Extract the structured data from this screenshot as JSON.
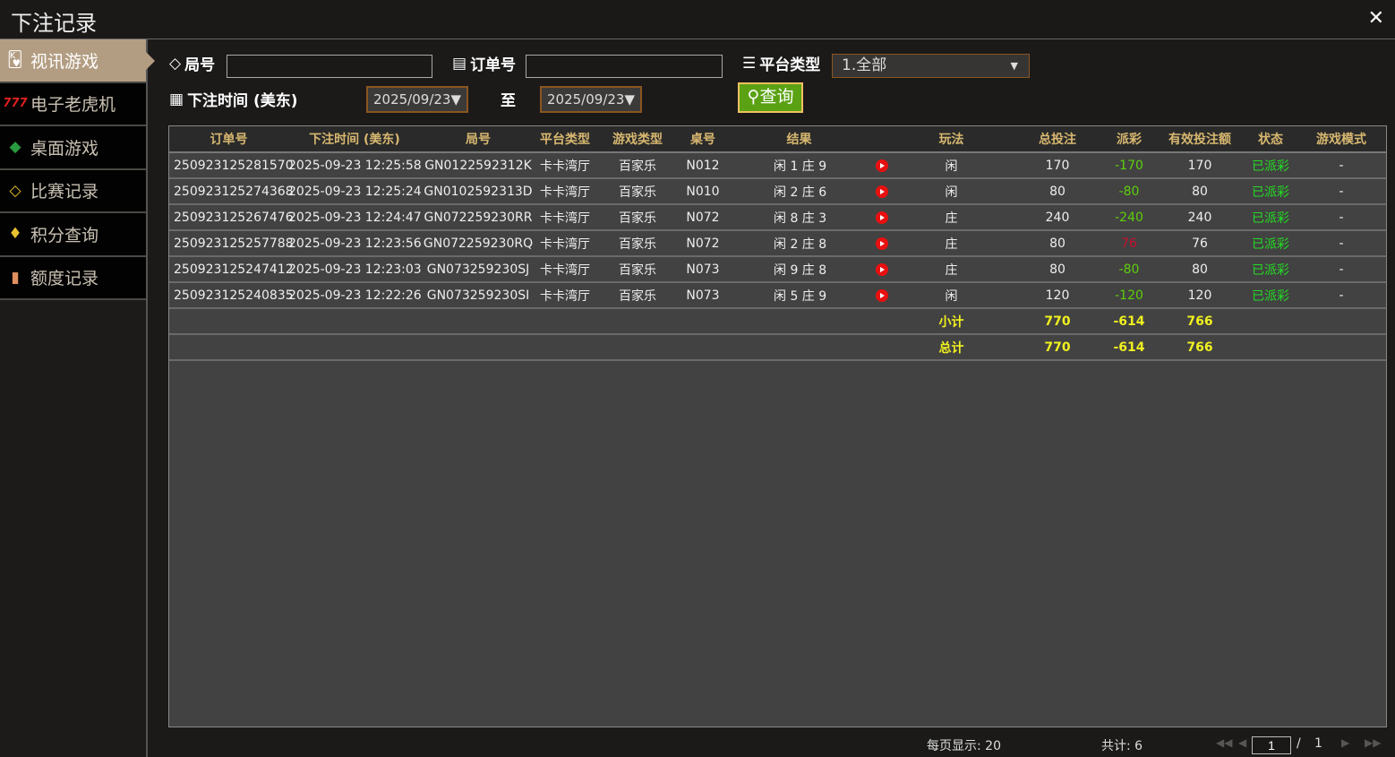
{
  "window": {
    "title": "下注记录",
    "close_icon": "close-icon"
  },
  "sidebar": {
    "items": [
      {
        "label": "视讯游戏",
        "icon": "playing-cards-icon",
        "active": true
      },
      {
        "label": "电子老虎机",
        "icon": "slot-777-icon"
      },
      {
        "label": "桌面游戏",
        "icon": "chips-icon"
      },
      {
        "label": "比赛记录",
        "icon": "ticket-icon"
      },
      {
        "label": "积分查询",
        "icon": "diamond-icon"
      },
      {
        "label": "额度记录",
        "icon": "document-icon"
      }
    ]
  },
  "filters": {
    "round_label": "局号",
    "round_value": "",
    "order_label": "订单号",
    "order_value": "",
    "platform_label": "平台类型",
    "platform_value": "1.全部",
    "time_label": "下注时间 (美东)",
    "date_from": "2025/09/23▼",
    "to_label": "至",
    "date_to": "2025/09/23▼",
    "query_label": "查询"
  },
  "table": {
    "headers": [
      "订单号",
      "下注时间 (美东)",
      "局号",
      "平台类型",
      "游戏类型",
      "桌号",
      "结果",
      "",
      "玩法",
      "总投注",
      "派彩",
      "有效投注额",
      "状态",
      "游戏模式"
    ],
    "rows": [
      [
        "250923125281570",
        "2025-09-23 12:25:58",
        "GN0122592312K",
        "卡卡湾厅",
        "百家乐",
        "N012",
        "闲 1 庄 9",
        "",
        "闲",
        "170",
        "-170",
        "170",
        "已派彩",
        "-"
      ],
      [
        "250923125274368",
        "2025-09-23 12:25:24",
        "GN0102592313D",
        "卡卡湾厅",
        "百家乐",
        "N010",
        "闲 2 庄 6",
        "",
        "闲",
        "80",
        "-80",
        "80",
        "已派彩",
        "-"
      ],
      [
        "250923125267476",
        "2025-09-23 12:24:47",
        "GN072259230RR",
        "卡卡湾厅",
        "百家乐",
        "N072",
        "闲 8 庄 3",
        "",
        "庄",
        "240",
        "-240",
        "240",
        "已派彩",
        "-"
      ],
      [
        "250923125257788",
        "2025-09-23 12:23:56",
        "GN072259230RQ",
        "卡卡湾厅",
        "百家乐",
        "N072",
        "闲 2 庄 8",
        "",
        "庄",
        "80",
        "76",
        "76",
        "已派彩",
        "-"
      ],
      [
        "250923125247412",
        "2025-09-23 12:23:03",
        "GN073259230SJ",
        "卡卡湾厅",
        "百家乐",
        "N073",
        "闲 9 庄 8",
        "",
        "庄",
        "80",
        "-80",
        "80",
        "已派彩",
        "-"
      ],
      [
        "250923125240835",
        "2025-09-23 12:22:26",
        "GN073259230SI",
        "卡卡湾厅",
        "百家乐",
        "N073",
        "闲 5 庄 9",
        "",
        "闲",
        "120",
        "-120",
        "120",
        "已派彩",
        "-"
      ]
    ],
    "subtotal": {
      "label": "小计",
      "total_bet": "770",
      "payout": "-614",
      "valid_bet": "766"
    },
    "total": {
      "label": "总计",
      "total_bet": "770",
      "payout": "-614",
      "valid_bet": "766"
    }
  },
  "colors": {
    "negative": "#5ccf0a",
    "positive": "#c8102e",
    "status": "#22dd22",
    "header": "#d8b870",
    "sum": "#f0f020"
  },
  "footer": {
    "page_size": "每页显示: 20",
    "total": "共计: 6",
    "current_page": "1",
    "separator": "/",
    "total_pages": "1"
  }
}
